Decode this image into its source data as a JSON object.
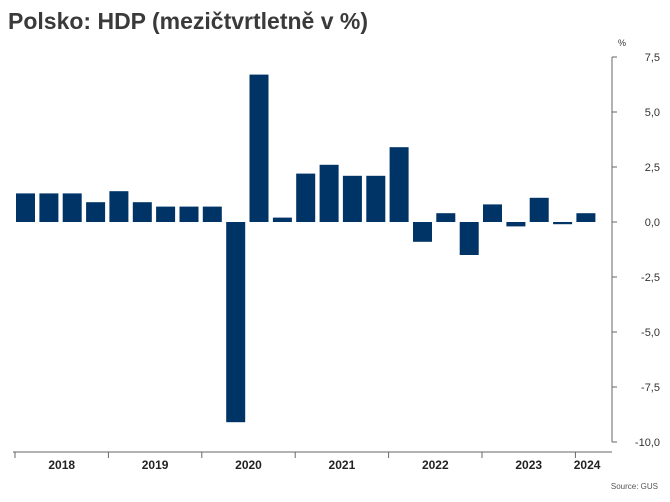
{
  "title": "Polsko: HDP (mezičtvrtletně v %)",
  "unit": "%",
  "source": "Source: GUS",
  "colors": {
    "bar": "#003366",
    "axis": "#666666"
  },
  "chart_data": {
    "type": "bar",
    "title": "Polsko: HDP (mezičtvrtletně v %)",
    "xlabel": "",
    "ylabel": "%",
    "ylim": [
      -10,
      7.5
    ],
    "yticks": [
      7.5,
      5,
      2.5,
      0,
      -2.5,
      -5,
      -7.5,
      -10
    ],
    "ytick_labels": [
      "7,5",
      "5,0",
      "2,5",
      "0,0",
      "-2,5",
      "-5,0",
      "-7,5",
      "-10,0"
    ],
    "year_labels": [
      "2018",
      "2019",
      "2020",
      "2021",
      "2022",
      "2023",
      "2024"
    ],
    "categories": [
      "2018 Q1",
      "2018 Q2",
      "2018 Q3",
      "2018 Q4",
      "2019 Q1",
      "2019 Q2",
      "2019 Q3",
      "2019 Q4",
      "2020 Q1",
      "2020 Q2",
      "2020 Q3",
      "2020 Q4",
      "2021 Q1",
      "2021 Q2",
      "2021 Q3",
      "2021 Q4",
      "2022 Q1",
      "2022 Q2",
      "2022 Q3",
      "2022 Q4",
      "2023 Q1",
      "2023 Q2",
      "2023 Q3",
      "2023 Q4",
      "2024 Q1"
    ],
    "values": [
      1.3,
      1.3,
      1.3,
      0.9,
      1.4,
      0.9,
      0.7,
      0.7,
      0.7,
      -9.1,
      6.7,
      0.2,
      2.2,
      2.6,
      2.1,
      2.1,
      3.4,
      -0.9,
      0.4,
      -1.5,
      0.8,
      -0.2,
      1.1,
      -0.1,
      0.4
    ],
    "grid": false,
    "legend": "none"
  }
}
